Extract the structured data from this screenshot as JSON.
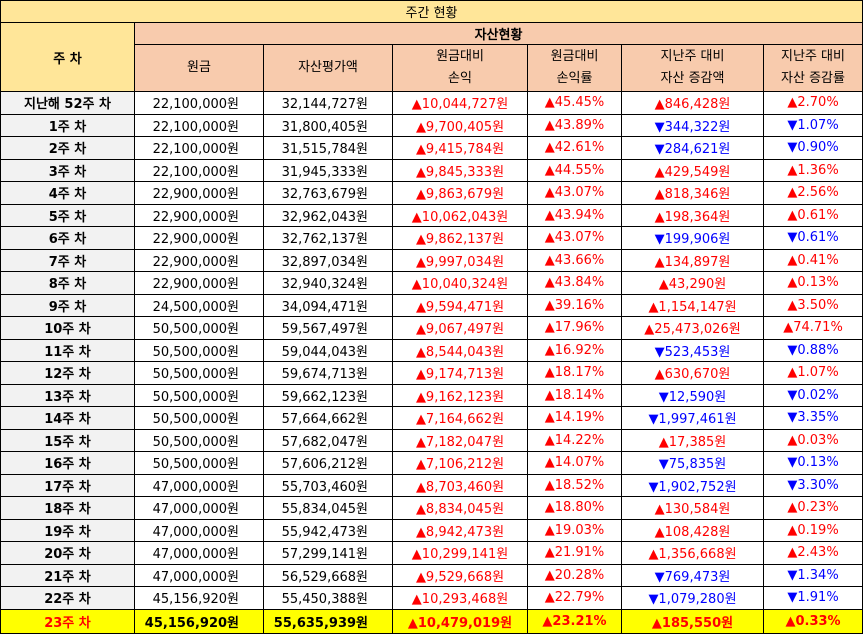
{
  "title": "주간 현황",
  "header": {
    "week_label": "주 차",
    "group_label": "자산현황",
    "columns": [
      {
        "line1": "원금",
        "line2": ""
      },
      {
        "line1": "자산평가액",
        "line2": ""
      },
      {
        "line1": "원금대비",
        "line2": "손익"
      },
      {
        "line1": "원금대비",
        "line2": "손익률"
      },
      {
        "line1": "지난주 대비",
        "line2": "자산 증감액"
      },
      {
        "line1": "지난주 대비",
        "line2": "자산 증감률"
      }
    ]
  },
  "colors": {
    "up": "#ff0000",
    "down": "#0000ff",
    "highlight_row": "#ffff00",
    "title_bg": "#ffe699",
    "header_bg": "#f8cbad"
  },
  "rows": [
    {
      "week": "지난해 52주 차",
      "principal": "22,100,000원",
      "asset": "32,144,727원",
      "pl": "▲10,044,727원",
      "pl_dir": "up",
      "pl_rate": "▲45.45%",
      "pl_rate_dir": "up",
      "wk_chg": "▲846,428원",
      "wk_chg_dir": "up",
      "wk_rate": "▲2.70%",
      "wk_rate_dir": "up"
    },
    {
      "week": "1주 차",
      "principal": "22,100,000원",
      "asset": "31,800,405원",
      "pl": "▲9,700,405원",
      "pl_dir": "up",
      "pl_rate": "▲43.89%",
      "pl_rate_dir": "up",
      "wk_chg": "▼344,322원",
      "wk_chg_dir": "down",
      "wk_rate": "▼1.07%",
      "wk_rate_dir": "down"
    },
    {
      "week": "2주 차",
      "principal": "22,100,000원",
      "asset": "31,515,784원",
      "pl": "▲9,415,784원",
      "pl_dir": "up",
      "pl_rate": "▲42.61%",
      "pl_rate_dir": "up",
      "wk_chg": "▼284,621원",
      "wk_chg_dir": "down",
      "wk_rate": "▼0.90%",
      "wk_rate_dir": "down"
    },
    {
      "week": "3주 차",
      "principal": "22,100,000원",
      "asset": "31,945,333원",
      "pl": "▲9,845,333원",
      "pl_dir": "up",
      "pl_rate": "▲44.55%",
      "pl_rate_dir": "up",
      "wk_chg": "▲429,549원",
      "wk_chg_dir": "up",
      "wk_rate": "▲1.36%",
      "wk_rate_dir": "up"
    },
    {
      "week": "4주 차",
      "principal": "22,900,000원",
      "asset": "32,763,679원",
      "pl": "▲9,863,679원",
      "pl_dir": "up",
      "pl_rate": "▲43.07%",
      "pl_rate_dir": "up",
      "wk_chg": "▲818,346원",
      "wk_chg_dir": "up",
      "wk_rate": "▲2.56%",
      "wk_rate_dir": "up"
    },
    {
      "week": "5주 차",
      "principal": "22,900,000원",
      "asset": "32,962,043원",
      "pl": "▲10,062,043원",
      "pl_dir": "up",
      "pl_rate": "▲43.94%",
      "pl_rate_dir": "up",
      "wk_chg": "▲198,364원",
      "wk_chg_dir": "up",
      "wk_rate": "▲0.61%",
      "wk_rate_dir": "up"
    },
    {
      "week": "6주 차",
      "principal": "22,900,000원",
      "asset": "32,762,137원",
      "pl": "▲9,862,137원",
      "pl_dir": "up",
      "pl_rate": "▲43.07%",
      "pl_rate_dir": "up",
      "wk_chg": "▼199,906원",
      "wk_chg_dir": "down",
      "wk_rate": "▼0.61%",
      "wk_rate_dir": "down"
    },
    {
      "week": "7주 차",
      "principal": "22,900,000원",
      "asset": "32,897,034원",
      "pl": "▲9,997,034원",
      "pl_dir": "up",
      "pl_rate": "▲43.66%",
      "pl_rate_dir": "up",
      "wk_chg": "▲134,897원",
      "wk_chg_dir": "up",
      "wk_rate": "▲0.41%",
      "wk_rate_dir": "up"
    },
    {
      "week": "8주 차",
      "principal": "22,900,000원",
      "asset": "32,940,324원",
      "pl": "▲10,040,324원",
      "pl_dir": "up",
      "pl_rate": "▲43.84%",
      "pl_rate_dir": "up",
      "wk_chg": "▲43,290원",
      "wk_chg_dir": "up",
      "wk_rate": "▲0.13%",
      "wk_rate_dir": "up"
    },
    {
      "week": "9주 차",
      "principal": "24,500,000원",
      "asset": "34,094,471원",
      "pl": "▲9,594,471원",
      "pl_dir": "up",
      "pl_rate": "▲39.16%",
      "pl_rate_dir": "up",
      "wk_chg": "▲1,154,147원",
      "wk_chg_dir": "up",
      "wk_rate": "▲3.50%",
      "wk_rate_dir": "up"
    },
    {
      "week": "10주 차",
      "principal": "50,500,000원",
      "asset": "59,567,497원",
      "pl": "▲9,067,497원",
      "pl_dir": "up",
      "pl_rate": "▲17.96%",
      "pl_rate_dir": "up",
      "wk_chg": "▲25,473,026원",
      "wk_chg_dir": "up",
      "wk_rate": "▲74.71%",
      "wk_rate_dir": "up"
    },
    {
      "week": "11주 차",
      "principal": "50,500,000원",
      "asset": "59,044,043원",
      "pl": "▲8,544,043원",
      "pl_dir": "up",
      "pl_rate": "▲16.92%",
      "pl_rate_dir": "up",
      "wk_chg": "▼523,453원",
      "wk_chg_dir": "down",
      "wk_rate": "▼0.88%",
      "wk_rate_dir": "down"
    },
    {
      "week": "12주 차",
      "principal": "50,500,000원",
      "asset": "59,674,713원",
      "pl": "▲9,174,713원",
      "pl_dir": "up",
      "pl_rate": "▲18.17%",
      "pl_rate_dir": "up",
      "wk_chg": "▲630,670원",
      "wk_chg_dir": "up",
      "wk_rate": "▲1.07%",
      "wk_rate_dir": "up"
    },
    {
      "week": "13주 차",
      "principal": "50,500,000원",
      "asset": "59,662,123원",
      "pl": "▲9,162,123원",
      "pl_dir": "up",
      "pl_rate": "▲18.14%",
      "pl_rate_dir": "up",
      "wk_chg": "▼12,590원",
      "wk_chg_dir": "down",
      "wk_rate": "▼0.02%",
      "wk_rate_dir": "down"
    },
    {
      "week": "14주 차",
      "principal": "50,500,000원",
      "asset": "57,664,662원",
      "pl": "▲7,164,662원",
      "pl_dir": "up",
      "pl_rate": "▲14.19%",
      "pl_rate_dir": "up",
      "wk_chg": "▼1,997,461원",
      "wk_chg_dir": "down",
      "wk_rate": "▼3.35%",
      "wk_rate_dir": "down"
    },
    {
      "week": "15주 차",
      "principal": "50,500,000원",
      "asset": "57,682,047원",
      "pl": "▲7,182,047원",
      "pl_dir": "up",
      "pl_rate": "▲14.22%",
      "pl_rate_dir": "up",
      "wk_chg": "▲17,385원",
      "wk_chg_dir": "up",
      "wk_rate": "▲0.03%",
      "wk_rate_dir": "up"
    },
    {
      "week": "16주 차",
      "principal": "50,500,000원",
      "asset": "57,606,212원",
      "pl": "▲7,106,212원",
      "pl_dir": "up",
      "pl_rate": "▲14.07%",
      "pl_rate_dir": "up",
      "wk_chg": "▼75,835원",
      "wk_chg_dir": "down",
      "wk_rate": "▼0.13%",
      "wk_rate_dir": "down"
    },
    {
      "week": "17주 차",
      "principal": "47,000,000원",
      "asset": "55,703,460원",
      "pl": "▲8,703,460원",
      "pl_dir": "up",
      "pl_rate": "▲18.52%",
      "pl_rate_dir": "up",
      "wk_chg": "▼1,902,752원",
      "wk_chg_dir": "down",
      "wk_rate": "▼3.30%",
      "wk_rate_dir": "down"
    },
    {
      "week": "18주 차",
      "principal": "47,000,000원",
      "asset": "55,834,045원",
      "pl": "▲8,834,045원",
      "pl_dir": "up",
      "pl_rate": "▲18.80%",
      "pl_rate_dir": "up",
      "wk_chg": "▲130,584원",
      "wk_chg_dir": "up",
      "wk_rate": "▲0.23%",
      "wk_rate_dir": "up"
    },
    {
      "week": "19주 차",
      "principal": "47,000,000원",
      "asset": "55,942,473원",
      "pl": "▲8,942,473원",
      "pl_dir": "up",
      "pl_rate": "▲19.03%",
      "pl_rate_dir": "up",
      "wk_chg": "▲108,428원",
      "wk_chg_dir": "up",
      "wk_rate": "▲0.19%",
      "wk_rate_dir": "up"
    },
    {
      "week": "20주 차",
      "principal": "47,000,000원",
      "asset": "57,299,141원",
      "pl": "▲10,299,141원",
      "pl_dir": "up",
      "pl_rate": "▲21.91%",
      "pl_rate_dir": "up",
      "wk_chg": "▲1,356,668원",
      "wk_chg_dir": "up",
      "wk_rate": "▲2.43%",
      "wk_rate_dir": "up"
    },
    {
      "week": "21주 차",
      "principal": "47,000,000원",
      "asset": "56,529,668원",
      "pl": "▲9,529,668원",
      "pl_dir": "up",
      "pl_rate": "▲20.28%",
      "pl_rate_dir": "up",
      "wk_chg": "▼769,473원",
      "wk_chg_dir": "down",
      "wk_rate": "▼1.34%",
      "wk_rate_dir": "down"
    },
    {
      "week": "22주 차",
      "principal": "45,156,920원",
      "asset": "55,450,388원",
      "pl": "▲10,293,468원",
      "pl_dir": "up",
      "pl_rate": "▲22.79%",
      "pl_rate_dir": "up",
      "wk_chg": "▼1,079,280원",
      "wk_chg_dir": "down",
      "wk_rate": "▼1.91%",
      "wk_rate_dir": "down"
    },
    {
      "week": "23주 차",
      "principal": "45,156,920원",
      "asset": "55,635,939원",
      "pl": "▲10,479,019원",
      "pl_dir": "up",
      "pl_rate": "▲23.21%",
      "pl_rate_dir": "up",
      "wk_chg": "▲185,550원",
      "wk_chg_dir": "up",
      "wk_rate": "▲0.33%",
      "wk_rate_dir": "up",
      "current": true
    }
  ]
}
